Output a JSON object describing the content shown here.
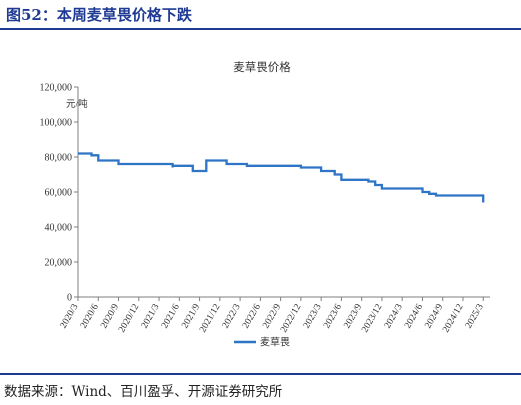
{
  "figure": {
    "title": "图52：本周麦草畏价格下跌",
    "source": "数据来源：Wind、百川盈孚、开源证券研究所"
  },
  "chart_data": {
    "type": "line",
    "title": "麦草畏价格",
    "unit_label": "元/吨",
    "ylim": [
      0,
      120000
    ],
    "yticks": [
      0,
      20000,
      40000,
      60000,
      80000,
      100000,
      120000
    ],
    "ytick_labels": [
      "0",
      "20,000",
      "40,000",
      "60,000",
      "80,000",
      "100,000",
      "120,000"
    ],
    "xlim": [
      "2020-03",
      "2025-04"
    ],
    "xtick_labels": [
      "2020/3",
      "2020/6",
      "2020/9",
      "2020/12",
      "2021/3",
      "2021/6",
      "2021/9",
      "2021/12",
      "2022/3",
      "2022/6",
      "2022/9",
      "2022/12",
      "2023/3",
      "2023/6",
      "2023/9",
      "2023/12",
      "2024/3",
      "2024/6",
      "2024/9",
      "2024/12",
      "2025/3"
    ],
    "xtick_dates": [
      "2020-03",
      "2020-06",
      "2020-09",
      "2020-12",
      "2021-03",
      "2021-06",
      "2021-09",
      "2021-12",
      "2022-03",
      "2022-06",
      "2022-09",
      "2022-12",
      "2023-03",
      "2023-06",
      "2023-09",
      "2023-12",
      "2024-03",
      "2024-06",
      "2024-09",
      "2024-12",
      "2025-03"
    ],
    "grid": false,
    "legend": "bottom-center",
    "color": "#2e75c5",
    "series": [
      {
        "name": "麦草畏",
        "x": [
          "2020-03",
          "2020-05",
          "2020-05",
          "2020-06",
          "2020-06",
          "2020-09",
          "2020-09",
          "2021-05",
          "2021-05",
          "2021-05",
          "2021-05",
          "2021-08",
          "2021-08",
          "2021-10",
          "2021-10",
          "2022-01",
          "2022-01",
          "2022-04",
          "2022-04",
          "2022-12",
          "2022-12",
          "2023-03",
          "2023-03",
          "2023-05",
          "2023-05",
          "2023-06",
          "2023-06",
          "2023-10",
          "2023-10",
          "2023-11",
          "2023-11",
          "2023-12",
          "2023-12",
          "2024-01",
          "2024-01",
          "2024-06",
          "2024-06",
          "2024-07",
          "2024-07",
          "2024-08",
          "2024-08",
          "2025-03",
          "2025-03"
        ],
        "y": [
          82000,
          82000,
          81000,
          81000,
          78000,
          78000,
          76000,
          76000,
          74000,
          74000,
          75000,
          75000,
          72000,
          72000,
          78000,
          78000,
          76000,
          76000,
          75000,
          75000,
          74000,
          74000,
          72000,
          72000,
          70000,
          70000,
          67000,
          67000,
          66000,
          66000,
          64000,
          64000,
          62000,
          62000,
          62000,
          62000,
          60000,
          60000,
          59000,
          59000,
          58000,
          58000,
          54000
        ]
      }
    ]
  }
}
